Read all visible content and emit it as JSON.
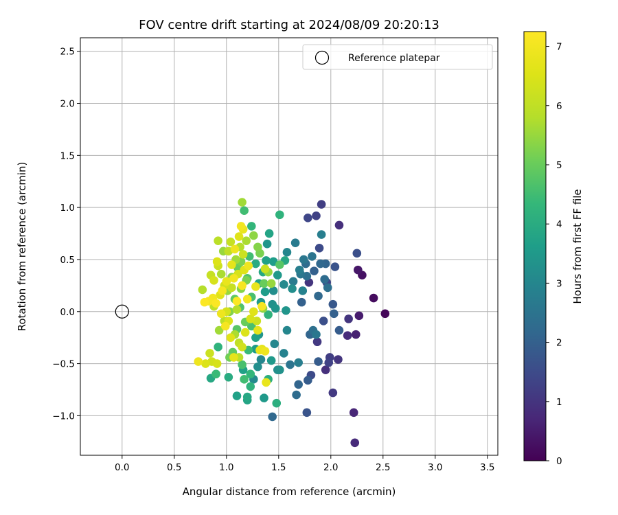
{
  "chart_data": {
    "type": "scatter",
    "title": "FOV centre drift starting at 2024/08/09 20:20:13",
    "xlabel": "Angular distance from reference (arcmin)",
    "ylabel": "Rotation from reference (arcmin)",
    "xlim": [
      -0.4,
      3.6
    ],
    "ylim": [
      -1.38,
      2.63
    ],
    "xticks": [
      0.0,
      0.5,
      1.0,
      1.5,
      2.0,
      2.5,
      3.0,
      3.5
    ],
    "xtick_labels": [
      "0.0",
      "0.5",
      "1.0",
      "1.5",
      "2.0",
      "2.5",
      "3.0",
      "3.5"
    ],
    "yticks": [
      -1.0,
      -0.5,
      0.0,
      0.5,
      1.0,
      1.5,
      2.0,
      2.5
    ],
    "ytick_labels": [
      "−1.0",
      "−0.5",
      "0.0",
      "0.5",
      "1.0",
      "1.5",
      "2.0",
      "2.5"
    ],
    "grid": true,
    "legend": {
      "placement": "top-right",
      "entries": [
        "Reference platepar"
      ]
    },
    "reference_point": {
      "x": 0.0,
      "y": 0.0
    },
    "colorbar": {
      "label": "Hours from first FF file",
      "range": [
        0,
        7.25
      ],
      "ticks": [
        0,
        1,
        2,
        3,
        4,
        5,
        6,
        7
      ],
      "tick_labels": [
        "0",
        "1",
        "2",
        "3",
        "4",
        "5",
        "6",
        "7"
      ],
      "colormap": "viridis"
    },
    "points": [
      [
        2.52,
        -0.02,
        0.1
      ],
      [
        2.41,
        0.13,
        0.2
      ],
      [
        2.3,
        0.35,
        0.3
      ],
      [
        2.26,
        0.4,
        0.4
      ],
      [
        2.27,
        -0.04,
        0.5
      ],
      [
        2.24,
        -0.22,
        0.6
      ],
      [
        2.22,
        -0.97,
        0.7
      ],
      [
        2.23,
        -1.26,
        0.8
      ],
      [
        2.08,
        0.83,
        0.9
      ],
      [
        2.07,
        -0.46,
        1.0
      ],
      [
        2.02,
        -0.78,
        1.1
      ],
      [
        1.91,
        1.03,
        1.2
      ],
      [
        1.86,
        0.92,
        1.3
      ],
      [
        1.78,
        0.9,
        1.4
      ],
      [
        1.89,
        0.61,
        1.5
      ],
      [
        1.95,
        -0.56,
        0.9
      ],
      [
        1.79,
        0.28,
        1.0
      ],
      [
        1.87,
        -0.29,
        1.1
      ],
      [
        1.98,
        -0.49,
        1.3
      ],
      [
        2.16,
        -0.23,
        0.8
      ],
      [
        2.17,
        -0.07,
        1.0
      ],
      [
        2.25,
        0.56,
        1.6
      ],
      [
        2.04,
        0.43,
        1.7
      ],
      [
        2.02,
        0.07,
        1.8
      ],
      [
        2.08,
        -0.18,
        1.9
      ],
      [
        2.03,
        -0.02,
        2.0
      ],
      [
        1.95,
        0.46,
        2.1
      ],
      [
        1.9,
        0.46,
        2.2
      ],
      [
        1.94,
        0.31,
        2.3
      ],
      [
        1.88,
        0.15,
        2.2
      ],
      [
        1.97,
        0.23,
        2.4
      ],
      [
        1.82,
        0.53,
        2.5
      ],
      [
        1.88,
        -0.48,
        1.9
      ],
      [
        1.77,
        -0.97,
        1.7
      ],
      [
        1.78,
        -0.66,
        1.9
      ],
      [
        1.69,
        -0.7,
        2.1
      ],
      [
        1.67,
        -0.8,
        2.3
      ],
      [
        1.8,
        -0.22,
        2.1
      ],
      [
        1.83,
        -0.18,
        2.4
      ],
      [
        1.72,
        0.09,
        2.0
      ],
      [
        1.74,
        0.5,
        2.6
      ],
      [
        1.66,
        0.66,
        2.7
      ],
      [
        1.7,
        0.4,
        2.8
      ],
      [
        1.73,
        0.2,
        2.9
      ],
      [
        1.77,
        0.34,
        2.4
      ],
      [
        1.91,
        0.74,
        2.8
      ],
      [
        1.44,
        -1.01,
        2.2
      ],
      [
        1.61,
        -0.51,
        2.5
      ],
      [
        1.58,
        -0.18,
        3.0
      ],
      [
        1.55,
        0.26,
        3.1
      ],
      [
        1.63,
        0.22,
        3.2
      ],
      [
        1.58,
        0.57,
        3.0
      ],
      [
        1.49,
        -0.56,
        3.2
      ],
      [
        1.51,
        -0.56,
        3.3
      ],
      [
        1.44,
        0.07,
        3.3
      ],
      [
        1.47,
        0.03,
        3.4
      ],
      [
        1.49,
        0.35,
        3.5
      ],
      [
        1.45,
        0.48,
        3.6
      ],
      [
        1.39,
        0.65,
        3.4
      ],
      [
        1.41,
        0.75,
        3.8
      ],
      [
        1.38,
        0.49,
        3.7
      ],
      [
        1.37,
        0.19,
        3.6
      ],
      [
        1.35,
        0.38,
        3.9
      ],
      [
        1.33,
        0.09,
        3.5
      ],
      [
        1.31,
        -0.22,
        3.4
      ],
      [
        1.31,
        0.27,
        3.8
      ],
      [
        1.28,
        0.46,
        4.0
      ],
      [
        1.28,
        -0.36,
        3.6
      ],
      [
        1.3,
        -0.53,
        3.2
      ],
      [
        1.26,
        -0.65,
        3.1
      ],
      [
        1.36,
        -0.83,
        3.5
      ],
      [
        1.2,
        -0.85,
        3.8
      ],
      [
        1.1,
        -0.81,
        3.7
      ],
      [
        1.2,
        -0.82,
        3.9
      ],
      [
        1.16,
        -0.56,
        3.7
      ],
      [
        1.23,
        -0.72,
        4.2
      ],
      [
        1.02,
        -0.63,
        4.0
      ],
      [
        1.48,
        -0.88,
        4.1
      ],
      [
        1.43,
        -0.47,
        3.5
      ],
      [
        1.4,
        -0.65,
        4.1
      ],
      [
        1.23,
        -0.6,
        4.3
      ],
      [
        1.17,
        -0.65,
        4.5
      ],
      [
        1.15,
        -0.51,
        4.6
      ],
      [
        1.21,
        -0.37,
        4.4
      ],
      [
        1.24,
        -0.14,
        4.6
      ],
      [
        1.24,
        0.14,
        4.6
      ],
      [
        1.2,
        0.32,
        4.7
      ],
      [
        1.22,
        0.53,
        4.5
      ],
      [
        1.24,
        0.82,
        4.3
      ],
      [
        1.17,
        0.97,
        4.5
      ],
      [
        1.51,
        0.93,
        4.2
      ],
      [
        1.13,
        0.04,
        4.7
      ],
      [
        1.1,
        -0.17,
        4.8
      ],
      [
        1.06,
        -0.39,
        4.9
      ],
      [
        1.08,
        0.12,
        4.9
      ],
      [
        1.11,
        0.42,
        5.0
      ],
      [
        1.14,
        0.48,
        5.2
      ],
      [
        1.19,
        0.3,
        5.2
      ],
      [
        1.14,
        0.22,
        5.3
      ],
      [
        1.18,
        -0.1,
        5.0
      ],
      [
        1.03,
        -0.44,
        5.1
      ],
      [
        0.92,
        -0.34,
        4.2
      ],
      [
        0.9,
        -0.6,
        4.4
      ],
      [
        0.85,
        -0.64,
        3.9
      ],
      [
        1.3,
        0.62,
        5.3
      ],
      [
        1.26,
        0.73,
        5.4
      ],
      [
        1.32,
        0.56,
        5.2
      ],
      [
        1.35,
        0.03,
        5.4
      ],
      [
        1.43,
        0.27,
        5.5
      ],
      [
        1.51,
        0.45,
        4.8
      ],
      [
        1.4,
        0.38,
        5.5
      ],
      [
        1.15,
        1.05,
        5.6
      ],
      [
        1.19,
        0.68,
        5.7
      ],
      [
        1.13,
        0.62,
        5.8
      ],
      [
        1.09,
        0.5,
        5.6
      ],
      [
        1.1,
        0.02,
        5.8
      ],
      [
        1.12,
        -0.44,
        5.9
      ],
      [
        0.95,
        0.36,
        5.7
      ],
      [
        0.92,
        0.68,
        5.9
      ],
      [
        1.02,
        0.58,
        6.0
      ],
      [
        1.04,
        0.67,
        6.1
      ],
      [
        0.88,
        0.05,
        6.0
      ],
      [
        0.85,
        0.35,
        6.1
      ],
      [
        0.77,
        0.21,
        5.8
      ],
      [
        0.84,
        -0.4,
        6.2
      ],
      [
        0.86,
        -0.48,
        6.3
      ],
      [
        0.91,
        -0.5,
        6.4
      ],
      [
        0.8,
        -0.5,
        6.5
      ],
      [
        0.73,
        -0.48,
        6.9
      ],
      [
        0.92,
        0.44,
        6.2
      ],
      [
        0.98,
        0.25,
        6.3
      ],
      [
        1.0,
        0.0,
        6.4
      ],
      [
        1.02,
        -0.09,
        6.5
      ],
      [
        1.04,
        -0.25,
        6.6
      ],
      [
        1.07,
        -0.44,
        6.7
      ],
      [
        1.15,
        -0.34,
        6.3
      ],
      [
        1.18,
        -0.2,
        6.5
      ],
      [
        1.23,
        -0.07,
        6.4
      ],
      [
        1.26,
        0.0,
        6.6
      ],
      [
        1.29,
        -0.09,
        6.2
      ],
      [
        1.32,
        -0.37,
        6.8
      ],
      [
        1.34,
        -0.36,
        6.7
      ],
      [
        1.37,
        -0.38,
        6.9
      ],
      [
        1.38,
        -0.68,
        6.8
      ],
      [
        1.16,
        0.79,
        6.8
      ],
      [
        1.14,
        0.82,
        7.0
      ],
      [
        1.12,
        0.72,
        6.6
      ],
      [
        1.08,
        0.6,
        6.9
      ],
      [
        1.05,
        0.45,
        6.7
      ],
      [
        1.07,
        0.32,
        7.0
      ],
      [
        1.0,
        0.29,
        6.8
      ],
      [
        0.96,
        0.2,
        7.1
      ],
      [
        0.94,
        0.16,
        6.6
      ],
      [
        0.9,
        0.08,
        7.2
      ],
      [
        0.87,
        0.13,
        7.0
      ],
      [
        0.83,
        0.1,
        7.1
      ],
      [
        0.79,
        0.09,
        7.2
      ],
      [
        0.95,
        -0.02,
        6.9
      ],
      [
        0.99,
        -0.14,
        7.1
      ],
      [
        1.1,
        0.1,
        7.2
      ],
      [
        1.15,
        0.25,
        7.1
      ],
      [
        1.2,
        0.12,
        7.0
      ],
      [
        1.21,
        0.44,
        6.9
      ],
      [
        1.28,
        0.24,
        6.8
      ],
      [
        1.34,
        0.05,
        7.1
      ],
      [
        1.3,
        -0.18,
        6.7
      ],
      [
        1.01,
        0.2,
        5.5
      ],
      [
        1.05,
        0.33,
        5.4
      ],
      [
        1.03,
        0.0,
        5.3
      ],
      [
        0.98,
        -0.09,
        5.9
      ],
      [
        0.93,
        -0.18,
        5.6
      ],
      [
        1.08,
        -0.22,
        5.7
      ],
      [
        1.12,
        -0.3,
        6.0
      ],
      [
        1.16,
        0.55,
        6.2
      ],
      [
        0.91,
        0.48,
        6.5
      ],
      [
        0.88,
        0.3,
        6.4
      ],
      [
        1.05,
        0.23,
        6.1
      ],
      [
        1.11,
        0.36,
        6.4
      ],
      [
        1.17,
        0.4,
        6.6
      ],
      [
        0.97,
        0.58,
        5.5
      ],
      [
        1.37,
        0.41,
        6.2
      ],
      [
        1.36,
        0.27,
        5.0
      ],
      [
        1.4,
        -0.03,
        4.2
      ],
      [
        1.46,
        -0.31,
        3.0
      ],
      [
        1.56,
        0.49,
        3.9
      ],
      [
        1.64,
        0.29,
        2.7
      ],
      [
        1.71,
        0.36,
        2.6
      ],
      [
        1.76,
        0.46,
        2.3
      ],
      [
        1.84,
        0.39,
        2.0
      ],
      [
        1.93,
        -0.09,
        1.6
      ],
      [
        1.96,
        0.28,
        1.4
      ],
      [
        1.99,
        -0.44,
        1.2
      ],
      [
        1.81,
        -0.61,
        1.5
      ],
      [
        1.86,
        -0.22,
        2.6
      ],
      [
        1.69,
        -0.49,
        2.8
      ],
      [
        1.55,
        -0.4,
        2.9
      ],
      [
        1.33,
        -0.46,
        3.0
      ],
      [
        1.28,
        -0.25,
        3.7
      ],
      [
        1.45,
        0.2,
        3.2
      ],
      [
        1.57,
        0.01,
        3.4
      ]
    ]
  }
}
